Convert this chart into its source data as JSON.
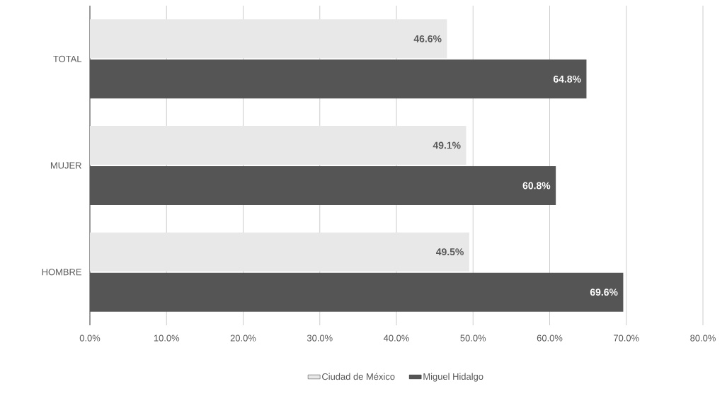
{
  "chart_data": {
    "type": "bar",
    "orientation": "horizontal",
    "categories": [
      "TOTAL",
      "MUJER",
      "HOMBRE"
    ],
    "series": [
      {
        "name": "Ciudad de México",
        "color": "#e8e8e8",
        "values": [
          46.6,
          49.1,
          49.5
        ],
        "value_labels": [
          "46.6%",
          "49.1%",
          "49.5%"
        ]
      },
      {
        "name": "Miguel Hidalgo",
        "color": "#555555",
        "values": [
          64.8,
          60.8,
          69.6
        ],
        "value_labels": [
          "64.8%",
          "60.8%",
          "69.6%"
        ]
      }
    ],
    "xlim": [
      0,
      80
    ],
    "xticks": [
      {
        "value": 0,
        "label": "0.0%"
      },
      {
        "value": 10,
        "label": "10.0%"
      },
      {
        "value": 20,
        "label": "20.0%"
      },
      {
        "value": 30,
        "label": "30.0%"
      },
      {
        "value": 40,
        "label": "40.0%"
      },
      {
        "value": 50,
        "label": "50.0%"
      },
      {
        "value": 60,
        "label": "60.0%"
      },
      {
        "value": 70,
        "label": "70.0%"
      },
      {
        "value": 80,
        "label": "80.0%"
      }
    ],
    "grid": "x",
    "legend": "bottom"
  }
}
